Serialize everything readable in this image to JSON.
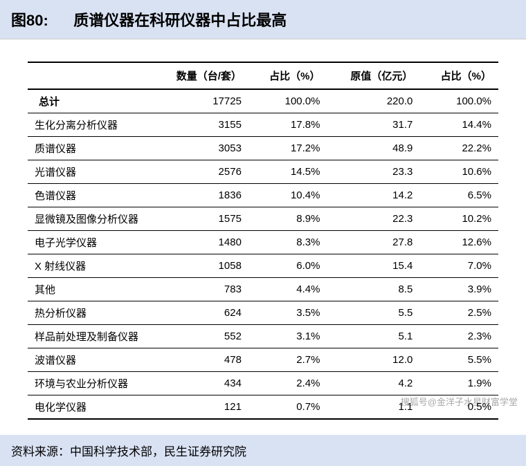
{
  "title": {
    "fig_label": "图80:",
    "fig_title": "质谱仪器在科研仪器中占比最高"
  },
  "table": {
    "columns": {
      "label": "",
      "qty": "数量（台/套）",
      "pct_qty": "占比（%）",
      "orig_value": "原值（亿元）",
      "pct_value": "占比（%）"
    },
    "rows": [
      {
        "label": "总计",
        "qty": "17725",
        "pct_qty": "100.0%",
        "orig_value": "220.0",
        "pct_value": "100.0%",
        "is_total": true
      },
      {
        "label": "生化分离分析仪器",
        "qty": "3155",
        "pct_qty": "17.8%",
        "orig_value": "31.7",
        "pct_value": "14.4%"
      },
      {
        "label": "质谱仪器",
        "qty": "3053",
        "pct_qty": "17.2%",
        "orig_value": "48.9",
        "pct_value": "22.2%"
      },
      {
        "label": "光谱仪器",
        "qty": "2576",
        "pct_qty": "14.5%",
        "orig_value": "23.3",
        "pct_value": "10.6%"
      },
      {
        "label": "色谱仪器",
        "qty": "1836",
        "pct_qty": "10.4%",
        "orig_value": "14.2",
        "pct_value": "6.5%"
      },
      {
        "label": "显微镜及图像分析仪器",
        "qty": "1575",
        "pct_qty": "8.9%",
        "orig_value": "22.3",
        "pct_value": "10.2%"
      },
      {
        "label": "电子光学仪器",
        "qty": "1480",
        "pct_qty": "8.3%",
        "orig_value": "27.8",
        "pct_value": "12.6%"
      },
      {
        "label": "X 射线仪器",
        "qty": "1058",
        "pct_qty": "6.0%",
        "orig_value": "15.4",
        "pct_value": "7.0%"
      },
      {
        "label": "其他",
        "qty": "783",
        "pct_qty": "4.4%",
        "orig_value": "8.5",
        "pct_value": "3.9%"
      },
      {
        "label": "热分析仪器",
        "qty": "624",
        "pct_qty": "3.5%",
        "orig_value": "5.5",
        "pct_value": "2.5%"
      },
      {
        "label": "样品前处理及制备仪器",
        "qty": "552",
        "pct_qty": "3.1%",
        "orig_value": "5.1",
        "pct_value": "2.3%"
      },
      {
        "label": "波谱仪器",
        "qty": "478",
        "pct_qty": "2.7%",
        "orig_value": "12.0",
        "pct_value": "5.5%"
      },
      {
        "label": "环境与农业分析仪器",
        "qty": "434",
        "pct_qty": "2.4%",
        "orig_value": "4.2",
        "pct_value": "1.9%"
      },
      {
        "label": "电化学仪器",
        "qty": "121",
        "pct_qty": "0.7%",
        "orig_value": "1.1",
        "pct_value": "0.5%"
      }
    ]
  },
  "source": "资料来源：中国科学技术部，民生证券研究院",
  "watermark": "搜狐号@金洋子水星财富学堂",
  "colors": {
    "banner_bg": "#d9e2f3",
    "text": "#000000",
    "border": "#000000",
    "page_bg": "#ffffff"
  }
}
